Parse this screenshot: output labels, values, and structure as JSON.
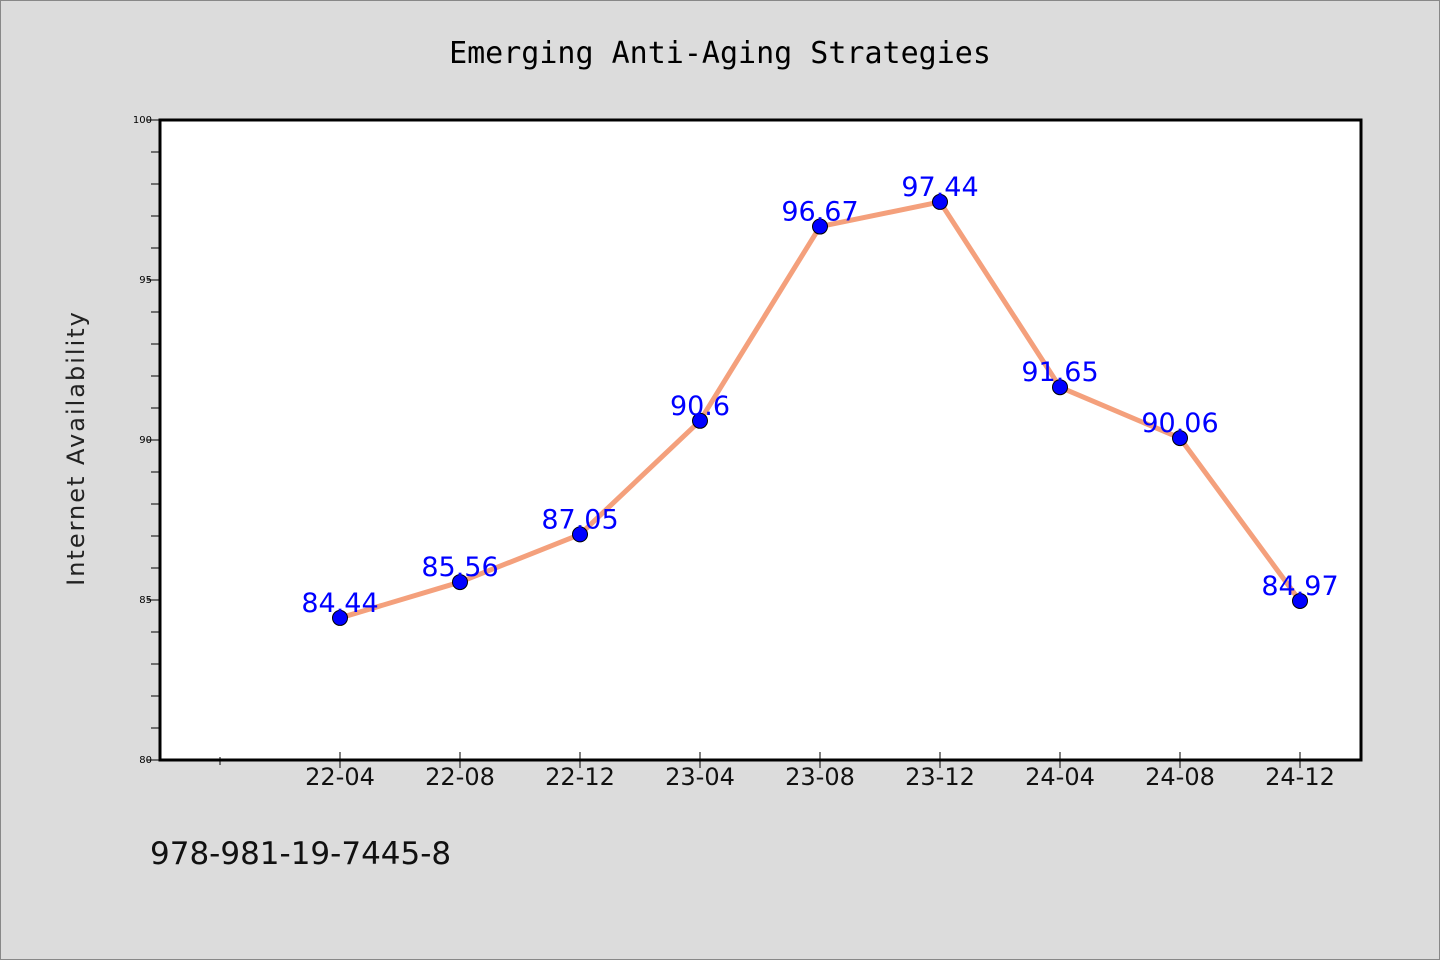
{
  "chart_data": {
    "type": "line",
    "title": "Emerging Anti-Aging Strategies",
    "xlabel": "",
    "ylabel": "Internet Availability",
    "categories": [
      "22-04",
      "22-08",
      "22-12",
      "23-04",
      "23-08",
      "23-12",
      "24-04",
      "24-08",
      "24-12"
    ],
    "series": [
      {
        "values": [
          84.44,
          85.56,
          87.05,
          90.6,
          96.67,
          97.44,
          91.65,
          90.06,
          84.97
        ],
        "data_labels": [
          "84.44",
          "85.56",
          "87.05",
          "90.6",
          "96.67",
          "97.44",
          "91.65",
          "90.06",
          "84.97"
        ],
        "line_color": "#f4a07c",
        "marker_color": "#0000ff"
      }
    ],
    "ylim": [
      80,
      100
    ],
    "yticks": [
      "80",
      "85",
      "90",
      "95",
      "100"
    ],
    "grid": false,
    "legend": "none"
  },
  "footer": {
    "text": "978-981-19-7445-8"
  },
  "colors": {
    "background": "#dcdcdc",
    "plot_background": "#ffffff",
    "line": "#f4a07c",
    "marker": "#0000ff",
    "data_label": "#0000ff"
  }
}
